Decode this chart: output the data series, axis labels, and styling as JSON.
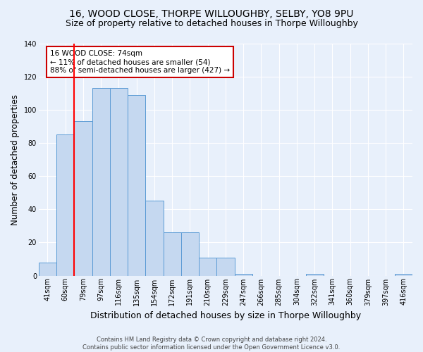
{
  "title": "16, WOOD CLOSE, THORPE WILLOUGHBY, SELBY, YO8 9PU",
  "subtitle": "Size of property relative to detached houses in Thorpe Willoughby",
  "xlabel": "Distribution of detached houses by size in Thorpe Willoughby",
  "ylabel": "Number of detached properties",
  "categories": [
    "41sqm",
    "60sqm",
    "79sqm",
    "97sqm",
    "116sqm",
    "135sqm",
    "154sqm",
    "172sqm",
    "191sqm",
    "210sqm",
    "229sqm",
    "247sqm",
    "266sqm",
    "285sqm",
    "304sqm",
    "322sqm",
    "341sqm",
    "360sqm",
    "379sqm",
    "397sqm",
    "416sqm"
  ],
  "values": [
    8,
    85,
    93,
    113,
    113,
    109,
    45,
    26,
    26,
    11,
    11,
    1,
    0,
    0,
    0,
    1,
    0,
    0,
    0,
    0,
    1
  ],
  "bar_color": "#c5d8f0",
  "bar_edge_color": "#5b9bd5",
  "background_color": "#e8f0fb",
  "grid_color": "#ffffff",
  "red_line_x": 1.5,
  "annotation_text": "16 WOOD CLOSE: 74sqm\n← 11% of detached houses are smaller (54)\n88% of semi-detached houses are larger (427) →",
  "annotation_box_color": "#ffffff",
  "annotation_box_edge": "#cc0000",
  "ylim": [
    0,
    140
  ],
  "yticks": [
    0,
    20,
    40,
    60,
    80,
    100,
    120,
    140
  ],
  "footer": "Contains HM Land Registry data © Crown copyright and database right 2024.\nContains public sector information licensed under the Open Government Licence v3.0.",
  "title_fontsize": 10,
  "subtitle_fontsize": 9,
  "xlabel_fontsize": 9,
  "ylabel_fontsize": 8.5,
  "tick_fontsize": 7,
  "footer_fontsize": 6,
  "annot_fontsize": 7.5
}
